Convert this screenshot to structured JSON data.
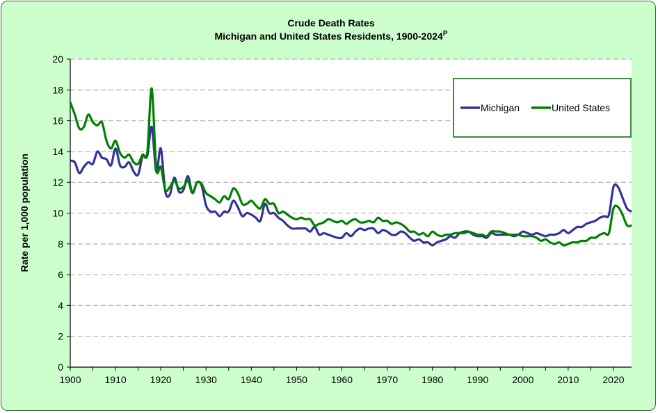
{
  "chart_data": {
    "type": "line",
    "title": "Crude Death Rates",
    "subtitle": "Michigan  and United States Residents,  1900-2024",
    "subtitle_superscript": "P",
    "ylabel": "Rate per 1,000 population",
    "xlabel": "",
    "xlim": [
      1900,
      2024
    ],
    "ylim": [
      0,
      20
    ],
    "x_ticks": [
      1900,
      1910,
      1920,
      1930,
      1940,
      1950,
      1960,
      1970,
      1980,
      1990,
      2000,
      2010,
      2020
    ],
    "y_ticks": [
      0,
      2,
      4,
      6,
      8,
      10,
      12,
      14,
      16,
      18,
      20
    ],
    "grid": "horizontal dashed",
    "legend_position": "top-right",
    "x_start": 1900,
    "series": [
      {
        "name": "Michigan",
        "color": "#333399",
        "values": [
          13.4,
          13.3,
          12.6,
          13.0,
          13.3,
          13.2,
          14.0,
          13.6,
          13.5,
          13.1,
          14.2,
          13.1,
          13.0,
          13.3,
          12.7,
          12.5,
          13.7,
          13.7,
          15.6,
          12.7,
          14.2,
          11.4,
          11.2,
          12.3,
          11.4,
          11.5,
          12.4,
          11.3,
          12.0,
          11.8,
          10.5,
          10.1,
          10.1,
          9.8,
          10.1,
          10.1,
          10.8,
          10.4,
          9.8,
          10.0,
          9.9,
          9.7,
          9.5,
          10.6,
          10.0,
          10.0,
          9.7,
          9.5,
          9.2,
          9.0,
          9.0,
          9.0,
          9.0,
          8.8,
          9.1,
          8.6,
          8.7,
          8.6,
          8.5,
          8.4,
          8.4,
          8.7,
          8.5,
          8.8,
          9.0,
          8.9,
          9.0,
          9.0,
          8.7,
          8.9,
          8.8,
          8.6,
          8.6,
          8.8,
          8.7,
          8.4,
          8.2,
          8.3,
          8.1,
          8.1,
          7.9,
          8.1,
          8.2,
          8.3,
          8.5,
          8.4,
          8.7,
          8.8,
          8.8,
          8.6,
          8.5,
          8.5,
          8.4,
          8.7,
          8.6,
          8.6,
          8.6,
          8.6,
          8.5,
          8.6,
          8.8,
          8.7,
          8.6,
          8.7,
          8.6,
          8.5,
          8.6,
          8.6,
          8.7,
          8.9,
          8.7,
          8.9,
          9.1,
          9.1,
          9.3,
          9.4,
          9.5,
          9.7,
          9.8,
          9.9,
          11.7,
          11.7,
          11.0,
          10.3,
          10.1
        ]
      },
      {
        "name": "United States",
        "color": "#008000",
        "values": [
          17.2,
          16.4,
          15.5,
          15.6,
          16.4,
          15.9,
          15.7,
          15.9,
          14.7,
          14.2,
          14.7,
          13.9,
          13.6,
          13.8,
          13.3,
          13.2,
          13.8,
          13.9,
          18.1,
          12.9,
          13.0,
          11.5,
          11.7,
          12.1,
          11.6,
          11.7,
          12.1,
          11.3,
          12.0,
          11.9,
          11.3,
          11.1,
          10.9,
          10.7,
          11.1,
          10.9,
          11.6,
          11.3,
          10.6,
          10.6,
          10.8,
          10.5,
          10.3,
          10.9,
          10.6,
          10.6,
          10.0,
          10.1,
          9.9,
          9.7,
          9.6,
          9.7,
          9.6,
          9.6,
          9.2,
          9.3,
          9.4,
          9.6,
          9.5,
          9.4,
          9.5,
          9.3,
          9.5,
          9.6,
          9.4,
          9.4,
          9.5,
          9.4,
          9.7,
          9.5,
          9.5,
          9.3,
          9.4,
          9.3,
          9.1,
          8.8,
          8.8,
          8.6,
          8.7,
          8.5,
          8.8,
          8.6,
          8.5,
          8.6,
          8.6,
          8.7,
          8.7,
          8.7,
          8.8,
          8.7,
          8.6,
          8.6,
          8.5,
          8.8,
          8.8,
          8.8,
          8.7,
          8.6,
          8.6,
          8.6,
          8.5,
          8.5,
          8.5,
          8.4,
          8.2,
          8.3,
          8.1,
          8.0,
          8.1,
          7.9,
          8.0,
          8.1,
          8.1,
          8.2,
          8.2,
          8.4,
          8.4,
          8.6,
          8.7,
          8.7,
          10.3,
          10.4,
          9.9,
          9.2,
          9.2
        ]
      }
    ]
  }
}
